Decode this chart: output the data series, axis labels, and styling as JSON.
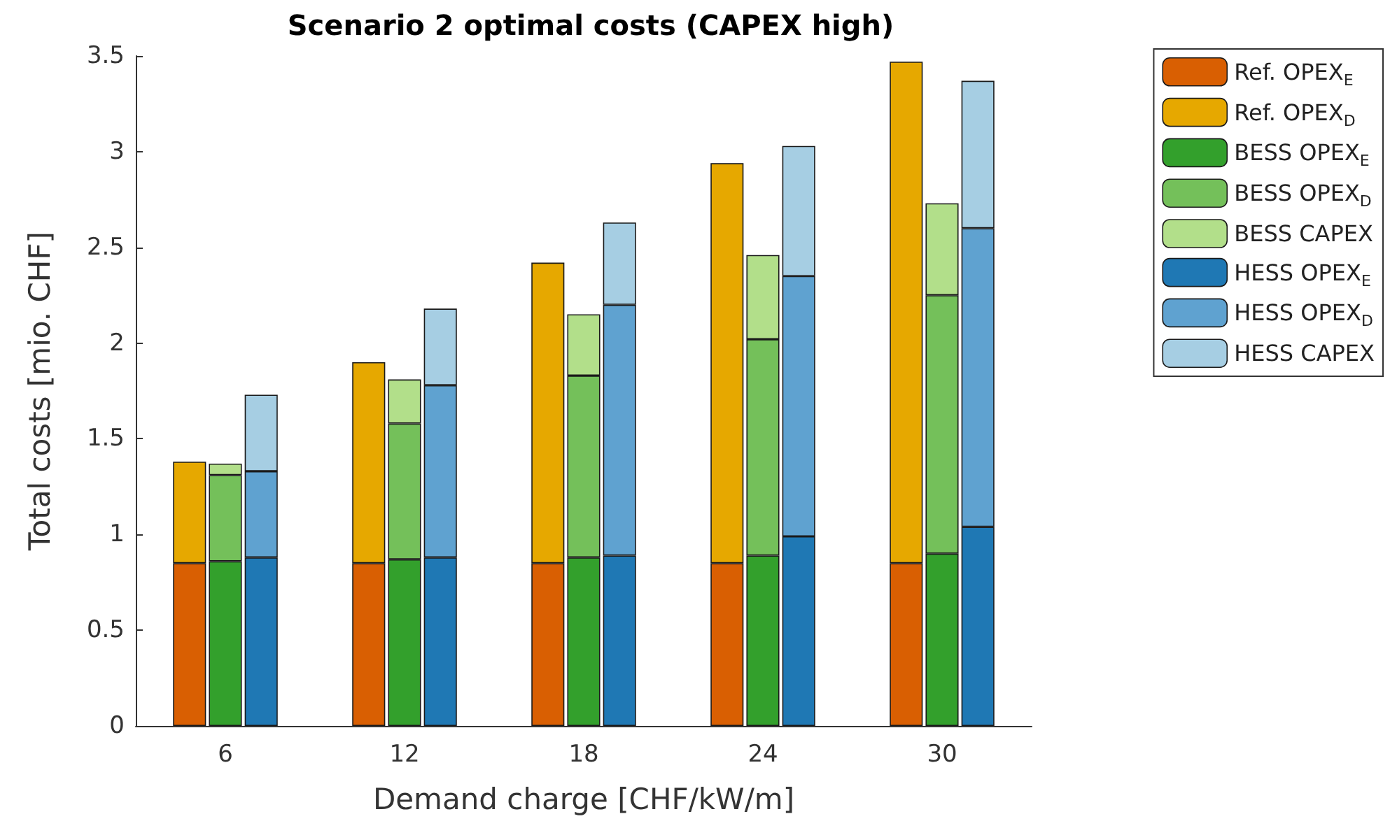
{
  "chart_data": {
    "type": "bar",
    "title": "Scenario 2 optimal costs (CAPEX high)",
    "xlabel": "Demand charge [CHF/kW/m]",
    "ylabel": "Total costs [mio. CHF]",
    "categories": [
      null,
      null,
      "6",
      null,
      null,
      null,
      null,
      "12",
      null,
      null,
      null,
      null,
      "18",
      null,
      null,
      null,
      null,
      "24",
      null,
      null,
      null,
      null,
      "30",
      null,
      null
    ],
    "stacked": true,
    "ylim": [
      0,
      3.5
    ],
    "yticks": [
      0,
      0.5,
      1,
      1.5,
      2,
      2.5,
      3,
      3.5
    ],
    "legend": "right",
    "series": [
      {
        "name": "Ref. OPEX$_{E}$",
        "color": "#d95f02",
        "values": [
          null,
          0.85,
          null,
          null,
          null,
          null,
          0.85,
          null,
          null,
          null,
          null,
          0.85,
          null,
          null,
          null,
          null,
          0.85,
          null,
          null,
          null,
          null,
          0.85,
          null,
          null,
          null
        ]
      },
      {
        "name": "Ref. OPEX$_{D}$",
        "color": "#e6a800",
        "values": [
          null,
          0.53,
          null,
          null,
          null,
          null,
          1.05,
          null,
          null,
          null,
          null,
          1.57,
          null,
          null,
          null,
          null,
          2.09,
          null,
          null,
          null,
          null,
          2.62,
          null,
          null,
          null
        ]
      },
      {
        "name": "BESS OPEX$_{E}$",
        "color": "#33a02c",
        "values": [
          null,
          null,
          0.86,
          null,
          null,
          null,
          null,
          0.87,
          null,
          null,
          null,
          null,
          0.88,
          null,
          null,
          null,
          null,
          0.89,
          null,
          null,
          null,
          null,
          0.9,
          null,
          null
        ]
      },
      {
        "name": "BESS OPEX$_{D}$",
        "color": "#74c05a",
        "values": [
          null,
          null,
          0.45,
          null,
          null,
          null,
          null,
          0.71,
          null,
          null,
          null,
          null,
          0.95,
          null,
          null,
          null,
          null,
          1.13,
          null,
          null,
          null,
          null,
          1.35,
          null,
          null
        ]
      },
      {
        "name": "BESS CAPEX",
        "color": "#b2df8a",
        "values": [
          null,
          null,
          0.06,
          null,
          null,
          null,
          null,
          0.23,
          null,
          null,
          null,
          null,
          0.32,
          null,
          null,
          null,
          null,
          0.44,
          null,
          null,
          null,
          null,
          0.48,
          null,
          null
        ]
      },
      {
        "name": "HESS OPEX$_{E}$",
        "color": "#1f78b4",
        "values": [
          null,
          null,
          null,
          0.88,
          null,
          null,
          null,
          null,
          0.88,
          null,
          null,
          null,
          null,
          0.89,
          null,
          null,
          null,
          null,
          0.99,
          null,
          null,
          null,
          null,
          1.04,
          null
        ]
      },
      {
        "name": "HESS OPEX$_{D}$",
        "color": "#5fa2d0",
        "values": [
          null,
          null,
          null,
          0.45,
          null,
          null,
          null,
          null,
          0.9,
          null,
          null,
          null,
          null,
          1.31,
          null,
          null,
          null,
          null,
          1.36,
          null,
          null,
          null,
          null,
          1.56,
          null
        ]
      },
      {
        "name": "HESS CAPEX",
        "color": "#a6cee3",
        "values": [
          null,
          null,
          null,
          0.4,
          null,
          null,
          null,
          null,
          0.4,
          null,
          null,
          null,
          null,
          0.43,
          null,
          null,
          null,
          null,
          0.68,
          null,
          null,
          null,
          null,
          0.77,
          null
        ]
      }
    ]
  }
}
